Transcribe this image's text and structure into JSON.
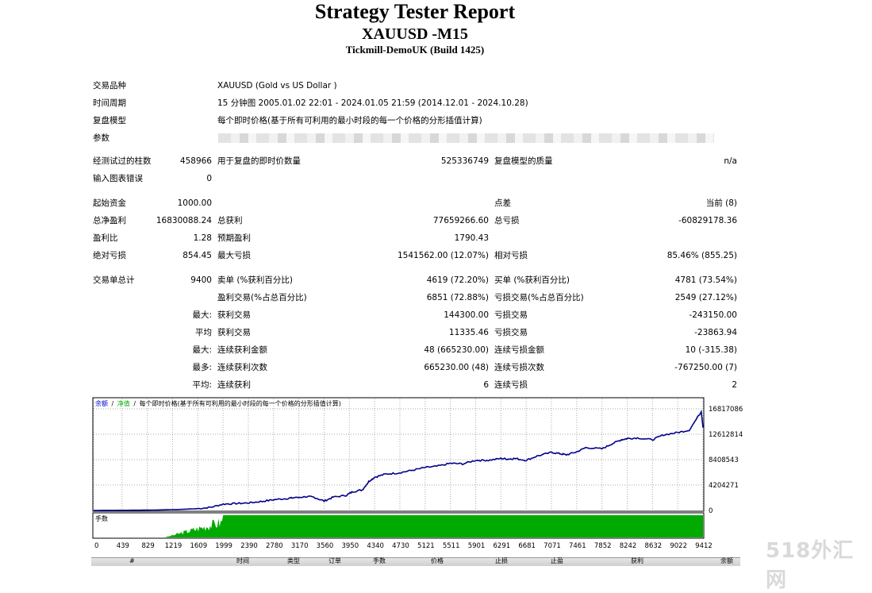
{
  "report": {
    "title": "Strategy Tester Report",
    "symbol_period": "XAUUSD -M15",
    "server": "Tickmill-DemoUK (Build 1425)"
  },
  "settings": [
    {
      "label": "交易品种",
      "value": "XAUUSD (Gold vs US Dollar )"
    },
    {
      "label": "时间周期",
      "value": "15 分钟图 2005.01.02 22:01 - 2024.01.05 21:59 (2014.12.01 - 2024.10.28)"
    },
    {
      "label": "复盘模型",
      "value": "每个即时价格(基于所有可利用的最小时段的每一个价格的分形插值计算)"
    },
    {
      "label": "参数",
      "value": ""
    }
  ],
  "quality": {
    "bars_label": "经测试过的柱数",
    "bars_value": "458966",
    "ticks_label": "用于复盘的即时价数量",
    "ticks_value": "525336749",
    "model_quality_label": "复盘模型的质量",
    "model_quality_value": "n/a",
    "errors_label": "输入图表错误",
    "errors_value": "0"
  },
  "results": {
    "initial_deposit_label": "起始资金",
    "initial_deposit": "1000.00",
    "spread_label": "点差",
    "spread": "当前 (8)",
    "net_profit_label": "总净盈利",
    "net_profit": "16830088.24",
    "gross_profit_label": "总获利",
    "gross_profit": "77659266.60",
    "gross_loss_label": "总亏损",
    "gross_loss": "-60829178.36",
    "profit_factor_label": "盈利比",
    "profit_factor": "1.28",
    "expected_payoff_label": "预期盈利",
    "expected_payoff": "1790.43",
    "abs_dd_label": "绝对亏损",
    "abs_dd": "854.45",
    "max_dd_label": "最大亏损",
    "max_dd": "1541562.00 (12.07%)",
    "rel_dd_label": "相对亏损",
    "rel_dd": "85.46% (855.25)",
    "total_trades_label": "交易单总计",
    "total_trades": "9400",
    "short_label": "卖单 (%获利百分比)",
    "short": "4619 (72.20%)",
    "long_label": "买单 (%获利百分比)",
    "long": "4781 (73.54%)",
    "profit_trades_label": "盈利交易(%占总百分比)",
    "profit_trades": "6851 (72.88%)",
    "loss_trades_label": "亏损交易(%占总百分比)",
    "loss_trades": "2549 (27.12%)",
    "max_prefix": "最大:",
    "largest_profit_label": "获利交易",
    "largest_profit": "144300.00",
    "largest_loss_label": "亏损交易",
    "largest_loss": "-243150.00",
    "avg_prefix": "平均",
    "avg_profit_label": "获利交易",
    "avg_profit": "11335.46",
    "avg_loss_label": "亏损交易",
    "avg_loss": "-23863.94",
    "max_prefix2": "最大:",
    "max_consec_wins_label": "连续获利金额",
    "max_consec_wins": "48 (665230.00)",
    "max_consec_losses_label": "连续亏损金额",
    "max_consec_losses": "10 (-315.38)",
    "most_prefix": "最多:",
    "max_consec_profit_label": "连续获利次数",
    "max_consec_profit": "665230.00 (48)",
    "max_consec_loss_label": "连续亏损次数",
    "max_consec_loss": "-767250.00 (7)",
    "avg_prefix2": "平均:",
    "avg_consec_wins_label": "连续获利",
    "avg_consec_wins": "6",
    "avg_consec_losses_label": "连续亏损",
    "avg_consec_losses": "2"
  },
  "chart_data": {
    "type": "line",
    "legend_balance": "余额",
    "legend_sep1": "/",
    "legend_equity": "净值",
    "legend_sep2": "/",
    "legend_model": "每个即时价格(基于所有可利用的最小时段的每一个价格的分形插值计算)",
    "y_ticks": [
      16817086,
      12612814,
      8408543,
      4204271,
      0
    ],
    "ylim": [
      0,
      16817086
    ],
    "x_ticks": [
      0,
      439,
      829,
      1219,
      1609,
      1999,
      2390,
      2780,
      3170,
      3560,
      3950,
      4340,
      4730,
      5121,
      5511,
      5901,
      6291,
      6681,
      7071,
      7461,
      7852,
      8242,
      8632,
      9022,
      9412
    ],
    "xlim": [
      0,
      9412
    ],
    "lots_label": "手数",
    "series": [
      {
        "values_x": [
          0,
          400,
          900,
          1300,
          1600,
          1800,
          2000,
          2200,
          2400,
          2600,
          2800,
          3000,
          3100,
          3300,
          3400,
          3560,
          3700,
          3900,
          4000,
          4150,
          4250,
          4340,
          4500,
          4700,
          4900,
          5121,
          5300,
          5511,
          5700,
          5901,
          6100,
          6291,
          6400,
          6500,
          6681,
          6850,
          7071,
          7200,
          7300,
          7461,
          7600,
          7852,
          8000,
          8150,
          8242,
          8400,
          8632,
          8800,
          9022,
          9200,
          9412
        ],
        "values_y": [
          0,
          20000,
          60000,
          150000,
          300000,
          500000,
          1050000,
          1150000,
          1250000,
          1500000,
          1800000,
          2000000,
          2100000,
          2300000,
          2200000,
          1550000,
          2200000,
          2500000,
          3100000,
          3400000,
          4800000,
          5500000,
          6000000,
          6200000,
          6600000,
          7100000,
          7300000,
          7800000,
          7700000,
          8300000,
          8300000,
          8600000,
          8500000,
          8600000,
          8300000,
          9000000,
          9600000,
          9400000,
          9200000,
          9700000,
          10400000,
          10200000,
          11000000,
          11700000,
          11900000,
          12000000,
          11700000,
          12500000,
          12900000,
          13300000,
          16817086
        ]
      }
    ],
    "lots_start_x": 1100
  },
  "table_header": [
    "#",
    "时间",
    "类型",
    "订单",
    "手数",
    "价格",
    "止损",
    "止盈",
    "获利",
    "余额"
  ],
  "watermark": "518外汇网"
}
